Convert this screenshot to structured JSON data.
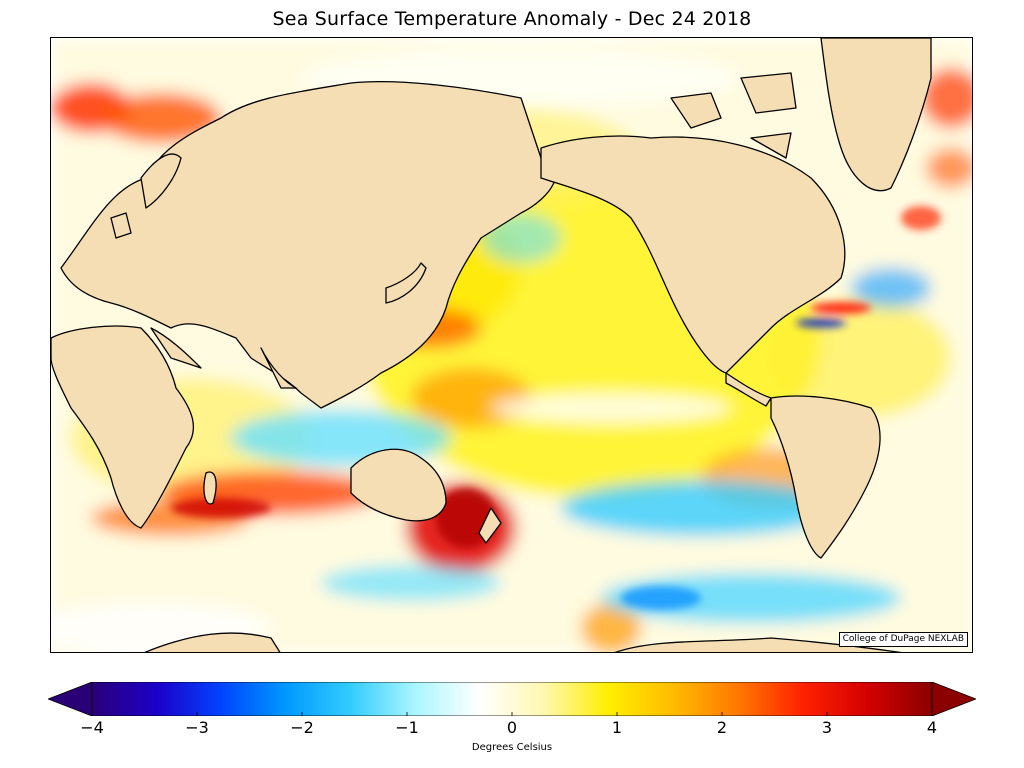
{
  "title": "Sea Surface Temperature Anomaly - Dec 24 2018",
  "credit": "College of DuPage NEXLAB",
  "land_color": "#f5deb3",
  "coast_color": "#000000",
  "colorbar": {
    "label": "Degrees Celsius",
    "min": -4,
    "max": 4,
    "ticks": [
      "−4",
      "−3",
      "−2",
      "−1",
      "0",
      "1",
      "2",
      "3",
      "4"
    ],
    "tick_values": [
      -4,
      -3,
      -2,
      -1,
      0,
      1,
      2,
      3,
      4
    ],
    "stops": [
      "#2a0077",
      "#1c00c8",
      "#0044ff",
      "#0099ff",
      "#33ccff",
      "#aaf6ff",
      "#ffffff",
      "#fff7b0",
      "#ffee00",
      "#ffbb00",
      "#ff7700",
      "#ff2200",
      "#d40000",
      "#8b0000"
    ]
  }
}
